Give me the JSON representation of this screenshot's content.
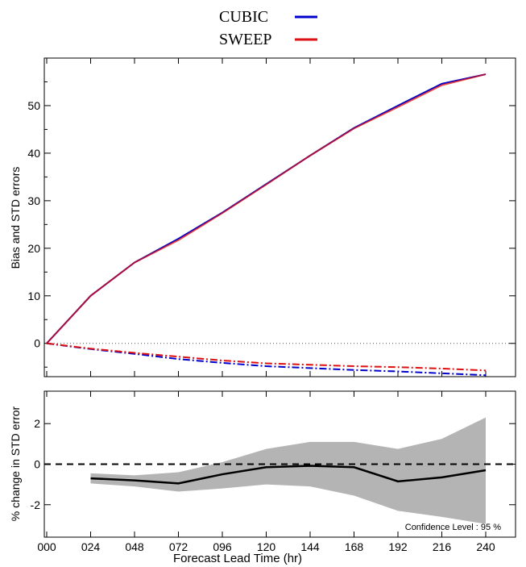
{
  "legend": {
    "entries": [
      {
        "name": "CUBIC",
        "color": "#0000cc"
      },
      {
        "name": "SWEEP",
        "color": "#dd1111"
      }
    ]
  },
  "colors": {
    "cubic": "#0000cc",
    "sweep": "#dd1111",
    "confidence_band": "#b4b4b4",
    "diff_line": "#000000"
  },
  "chart_data": [
    {
      "type": "line",
      "ylabel": "Bias and STD errors",
      "x": [
        0,
        24,
        48,
        72,
        96,
        120,
        144,
        168,
        192,
        216,
        240
      ],
      "ylim": [
        -7,
        60
      ],
      "yticks": [
        0,
        10,
        20,
        30,
        40,
        50
      ],
      "zero_line": "dotted",
      "series": [
        {
          "name": "CUBIC",
          "stat": "STD",
          "style": "solid",
          "values": [
            0,
            10,
            17,
            22,
            27.5,
            33.5,
            39.5,
            45.3,
            50,
            54.6,
            56.6
          ]
        },
        {
          "name": "SWEEP",
          "stat": "STD",
          "style": "solid",
          "values": [
            0,
            10,
            17,
            21.7,
            27.4,
            33.4,
            39.5,
            45.2,
            49.7,
            54.3,
            56.6
          ]
        },
        {
          "name": "CUBIC",
          "stat": "Bias",
          "style": "dash-dot",
          "values": [
            0,
            -1.2,
            -2.2,
            -3.3,
            -4.1,
            -4.8,
            -5.2,
            -5.6,
            -5.9,
            -6.3,
            -6.7
          ]
        },
        {
          "name": "SWEEP",
          "stat": "Bias",
          "style": "dash-dot",
          "values": [
            0,
            -1.1,
            -2.0,
            -2.8,
            -3.6,
            -4.2,
            -4.5,
            -4.8,
            -5.0,
            -5.3,
            -5.7
          ]
        }
      ]
    },
    {
      "type": "area",
      "ylabel": "% change in STD error",
      "xlabel": "Forecast Lead Time (hr)",
      "x": [
        0,
        24,
        48,
        72,
        96,
        120,
        144,
        168,
        192,
        216,
        240
      ],
      "xticklabels": [
        "000",
        "024",
        "048",
        "072",
        "096",
        "120",
        "144",
        "168",
        "192",
        "216",
        "240"
      ],
      "ylim": [
        -3.6,
        3.6
      ],
      "yticks": [
        -2,
        0,
        2
      ],
      "zero_line": "dashed",
      "series": [
        {
          "stat": "mean",
          "x": [
            24,
            48,
            72,
            96,
            120,
            144,
            168,
            192,
            216,
            240
          ],
          "values": [
            -0.7,
            -0.8,
            -0.95,
            -0.5,
            -0.15,
            -0.08,
            -0.15,
            -0.85,
            -0.65,
            -0.3
          ]
        }
      ],
      "confidence_band": {
        "x": [
          24,
          48,
          72,
          96,
          120,
          144,
          168,
          192,
          216,
          240
        ],
        "upper": [
          -0.45,
          -0.55,
          -0.4,
          0.1,
          0.75,
          1.1,
          1.1,
          0.75,
          1.25,
          2.3
        ],
        "lower": [
          -0.95,
          -1.1,
          -1.35,
          -1.2,
          -1.0,
          -1.1,
          -1.55,
          -2.3,
          -2.6,
          -2.95
        ]
      },
      "annotation": "Confidence Level : 95 %"
    }
  ]
}
